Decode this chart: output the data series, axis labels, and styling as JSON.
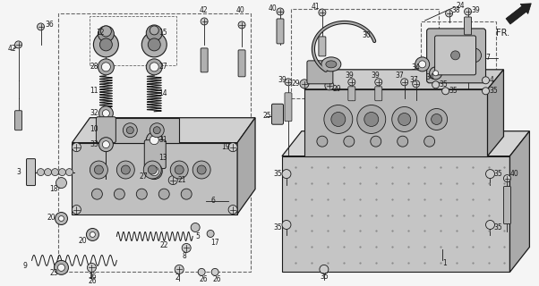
{
  "bg_color": "#f5f5f5",
  "line_color": "#222222",
  "figsize": [
    6.02,
    3.2
  ],
  "dpi": 100,
  "lc": "#1a1a1a",
  "gray1": "#aaaaaa",
  "gray2": "#cccccc",
  "gray3": "#888888",
  "gray4": "#dddddd",
  "white": "#ffffff"
}
